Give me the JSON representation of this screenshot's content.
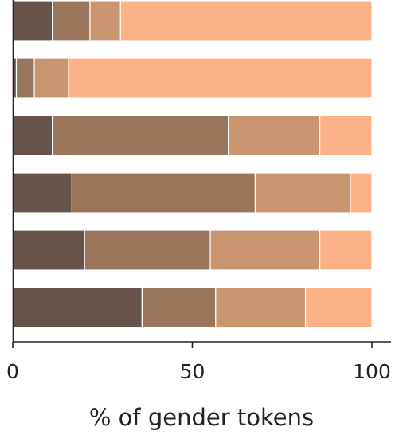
{
  "chart_data": {
    "type": "bar",
    "orientation": "horizontal",
    "stacked": true,
    "xlabel": "% of gender tokens",
    "ylabel": "",
    "xlim": [
      0,
      100
    ],
    "x_ticks": [
      0,
      50,
      100
    ],
    "grid": false,
    "category_count": 6,
    "series": [
      {
        "color": "#66544a",
        "values": [
          11,
          1,
          11,
          16.5,
          20,
          36
        ]
      },
      {
        "color": "#9a7559",
        "values": [
          10.5,
          5,
          49,
          51,
          35,
          20.5
        ]
      },
      {
        "color": "#c8956f",
        "values": [
          8.5,
          9.5,
          25.5,
          26.5,
          30.5,
          25
        ]
      },
      {
        "color": "#fcb286",
        "values": [
          70,
          84.5,
          14.5,
          6,
          14.5,
          18.5
        ]
      }
    ]
  }
}
